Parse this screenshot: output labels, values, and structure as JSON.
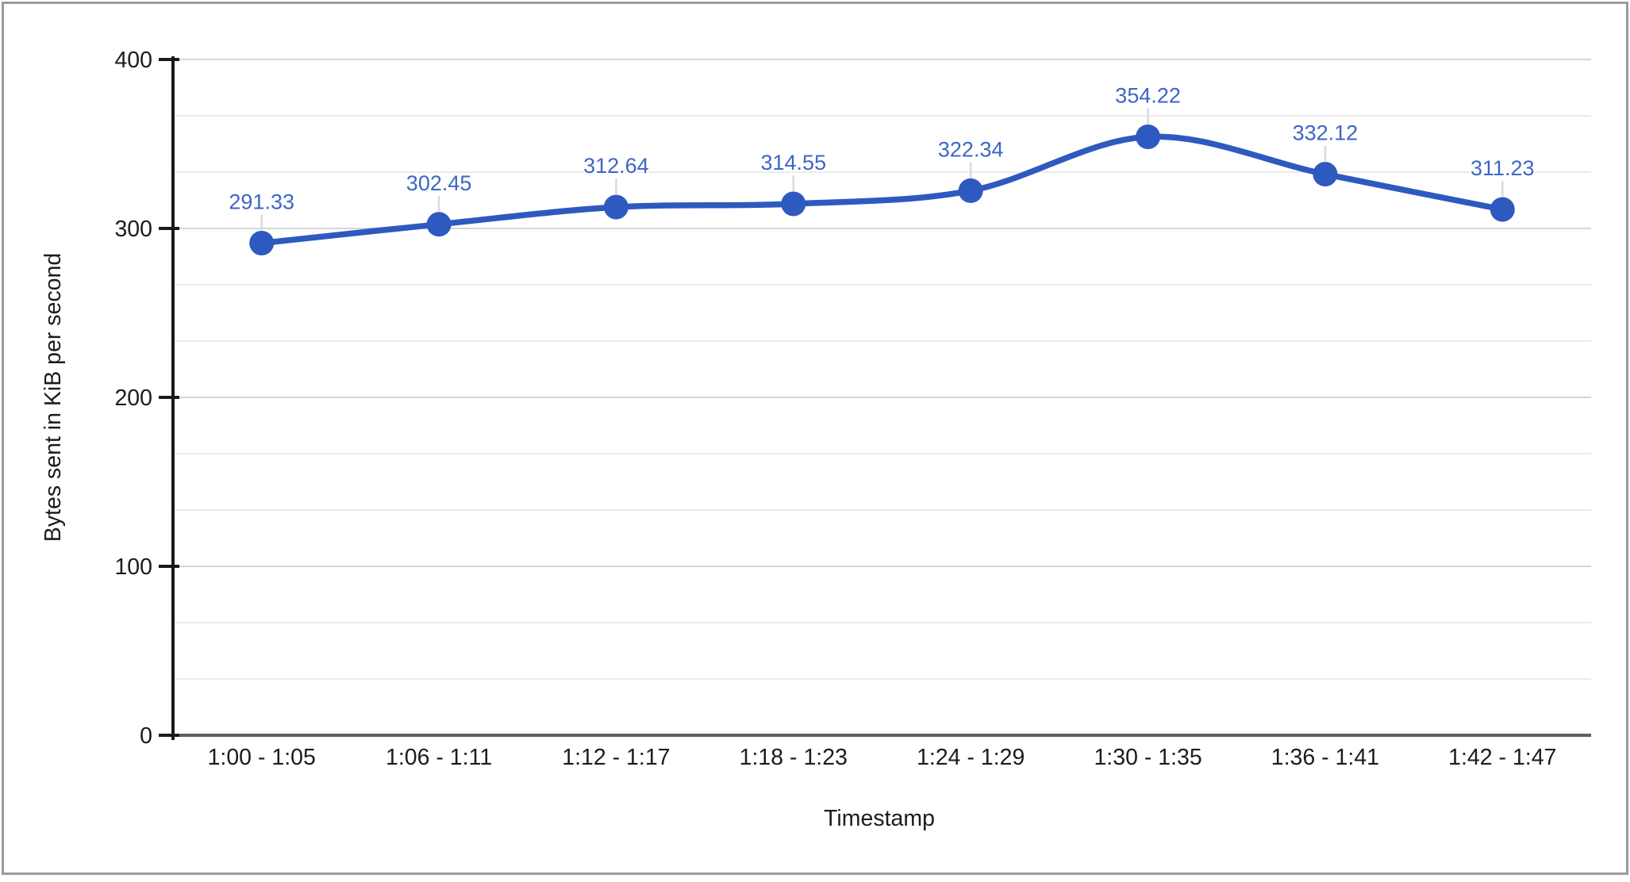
{
  "chart_data": {
    "type": "line",
    "smooth": true,
    "title": "",
    "xlabel": "Timestamp",
    "ylabel": "Bytes sent in KiB per second",
    "categories": [
      "1:00 - 1:05",
      "1:06 - 1:11",
      "1:12 - 1:17",
      "1:18 - 1:23",
      "1:24 - 1:29",
      "1:30 - 1:35",
      "1:36 - 1:41",
      "1:42 - 1:47"
    ],
    "values": [
      291.33,
      302.45,
      312.64,
      314.55,
      322.34,
      354.22,
      332.12,
      311.23
    ],
    "data_labels": [
      "291.33",
      "302.45",
      "312.64",
      "314.55",
      "322.34",
      "354.22",
      "332.12",
      "311.23"
    ],
    "ylim": [
      0,
      400
    ],
    "yticks": [
      0,
      100,
      200,
      300,
      400
    ],
    "minor_gridlines_between_major": 2,
    "grid": true,
    "legend": "none",
    "marker": "circle"
  },
  "colors": {
    "background": "#ffffff",
    "border": "#9b9b9b",
    "series": "#2e59bf",
    "annotation": "#3d66c5",
    "annotation_stem": "#dadada",
    "grid_major": "#d6d6d6",
    "grid_minor": "#eaeaea",
    "baseline": "#5f5f5f",
    "axis": "#1a1a1a",
    "text": "#1c1c1c"
  }
}
